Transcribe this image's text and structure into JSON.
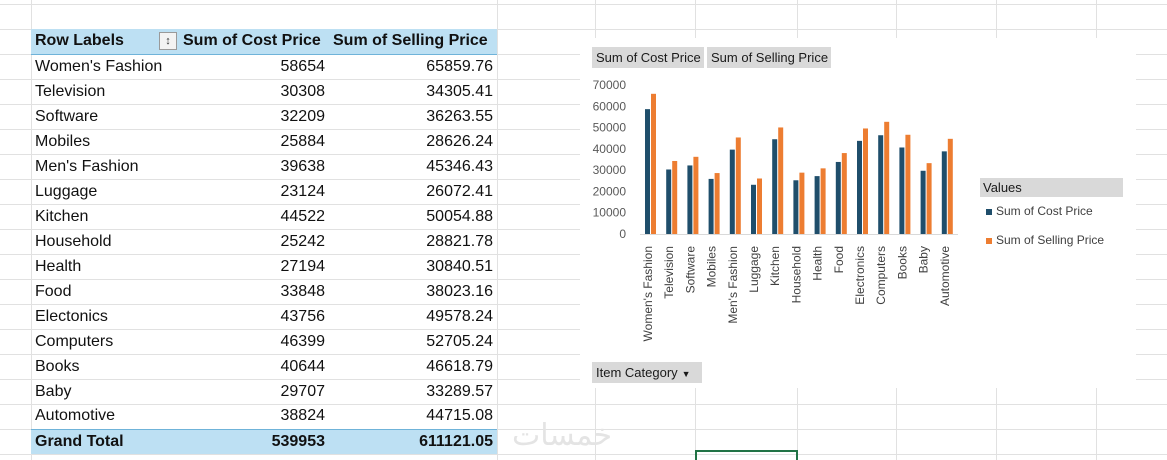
{
  "pivot_table": {
    "headers": [
      "Row Labels",
      "Sum of Cost Price",
      "Sum of Selling Price"
    ],
    "rows": [
      {
        "label": "Women's Fashion",
        "cost": "58654",
        "selling": "65859.76"
      },
      {
        "label": "Television",
        "cost": "30308",
        "selling": "34305.41"
      },
      {
        "label": "Software",
        "cost": "32209",
        "selling": "36263.55"
      },
      {
        "label": "Mobiles",
        "cost": "25884",
        "selling": "28626.24"
      },
      {
        "label": "Men's Fashion",
        "cost": "39638",
        "selling": "45346.43"
      },
      {
        "label": "Luggage",
        "cost": "23124",
        "selling": "26072.41"
      },
      {
        "label": "Kitchen",
        "cost": "44522",
        "selling": "50054.88"
      },
      {
        "label": "Household",
        "cost": "25242",
        "selling": "28821.78"
      },
      {
        "label": "Health",
        "cost": "27194",
        "selling": "30840.51"
      },
      {
        "label": "Food",
        "cost": "33848",
        "selling": "38023.16"
      },
      {
        "label": "Electonics",
        "cost": "43756",
        "selling": "49578.24"
      },
      {
        "label": "Computers",
        "cost": "46399",
        "selling": "52705.24"
      },
      {
        "label": "Books",
        "cost": "40644",
        "selling": "46618.79"
      },
      {
        "label": "Baby",
        "cost": "29707",
        "selling": "33289.57"
      },
      {
        "label": "Automotive",
        "cost": "38824",
        "selling": "44715.08"
      }
    ],
    "grand_total": {
      "label": "Grand Total",
      "cost": "539953",
      "selling": "611121.05"
    }
  },
  "chart": {
    "field_buttons": {
      "cost": "Sum of Cost Price",
      "selling": "Sum of Selling Price",
      "category": "Item Category"
    },
    "legend_title": "Values",
    "icons": {
      "filter": "filter-sort-icon",
      "dropdown": "dropdown-arrow-icon"
    }
  },
  "chart_data": {
    "type": "bar",
    "categories": [
      "Women's Fashion",
      "Television",
      "Software",
      "Mobiles",
      "Men's Fashion",
      "Luggage",
      "Kitchen",
      "Household",
      "Health",
      "Food",
      "Electronics",
      "Computers",
      "Books",
      "Baby",
      "Automotive"
    ],
    "series": [
      {
        "name": "Sum of Cost Price",
        "color": "#1f4e6b",
        "values": [
          58654,
          30308,
          32209,
          25884,
          39638,
          23124,
          44522,
          25242,
          27194,
          33848,
          43756,
          46399,
          40644,
          29707,
          38824
        ]
      },
      {
        "name": "Sum of Selling Price",
        "color": "#ed7d31",
        "values": [
          65859.76,
          34305.41,
          36263.55,
          28626.24,
          45346.43,
          26072.41,
          50054.88,
          28821.78,
          30840.51,
          38023.16,
          49578.24,
          52705.24,
          46618.79,
          33289.57,
          44715.08
        ]
      }
    ],
    "yticks": [
      0,
      10000,
      20000,
      30000,
      40000,
      50000,
      60000,
      70000
    ],
    "ylim": [
      0,
      70000
    ],
    "grid": false,
    "legend_position": "right"
  },
  "watermark": "خمسات"
}
